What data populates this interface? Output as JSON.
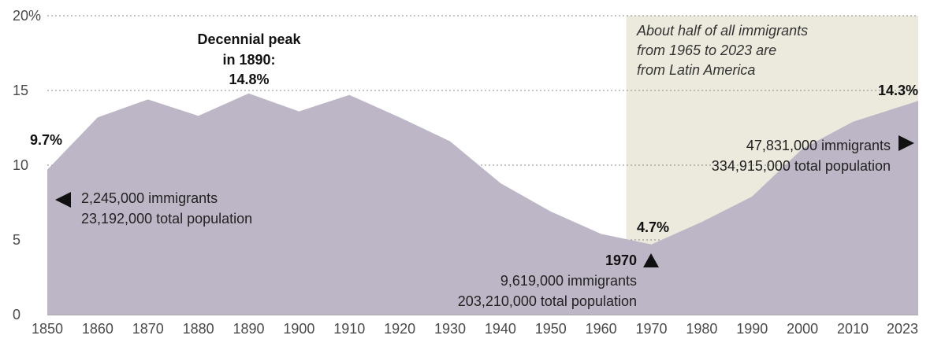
{
  "chart_data": {
    "type": "area",
    "title": "",
    "xlabel": "",
    "ylabel": "",
    "ylim": [
      0,
      20
    ],
    "grid": true,
    "y_ticks": [
      "0",
      "5",
      "10",
      "15",
      "20%"
    ],
    "x_ticks": [
      "1850",
      "1860",
      "1870",
      "1880",
      "1890",
      "1900",
      "1910",
      "1920",
      "1930",
      "1940",
      "1950",
      "1960",
      "1970",
      "1980",
      "1990",
      "2000",
      "2010",
      "2023"
    ],
    "series": [
      {
        "color": "#bdb6c7",
        "x": [
          1850,
          1860,
          1870,
          1880,
          1890,
          1900,
          1910,
          1920,
          1930,
          1940,
          1950,
          1960,
          1970,
          1980,
          1990,
          2000,
          2010,
          2023
        ],
        "values": [
          9.7,
          13.2,
          14.4,
          13.3,
          14.8,
          13.6,
          14.7,
          13.2,
          11.6,
          8.8,
          6.9,
          5.4,
          4.7,
          6.2,
          7.9,
          11.1,
          12.9,
          14.3
        ]
      }
    ],
    "highlight": {
      "x_start": 1965,
      "x_end": 2023,
      "color": "#ebeadd"
    },
    "annotations": {
      "peak_line1": "Decennial peak",
      "peak_line2": "in 1890:",
      "peak_value": "14.8%",
      "start_value": "9.7%",
      "start_immigrants": "2,245,000 immigrants",
      "start_population": "23,192,000 total population",
      "low_value": "4.7%",
      "low_year": "1970",
      "low_immigrants": "9,619,000 immigrants",
      "low_population": "203,210,000 total population",
      "end_value": "14.3%",
      "end_immigrants": "47,831,000 immigrants",
      "end_population": "334,915,000 total population",
      "highlight_line1": "About half of all immigrants",
      "highlight_line2": "from 1965 to 2023 are",
      "highlight_line3": "from Latin America"
    }
  }
}
